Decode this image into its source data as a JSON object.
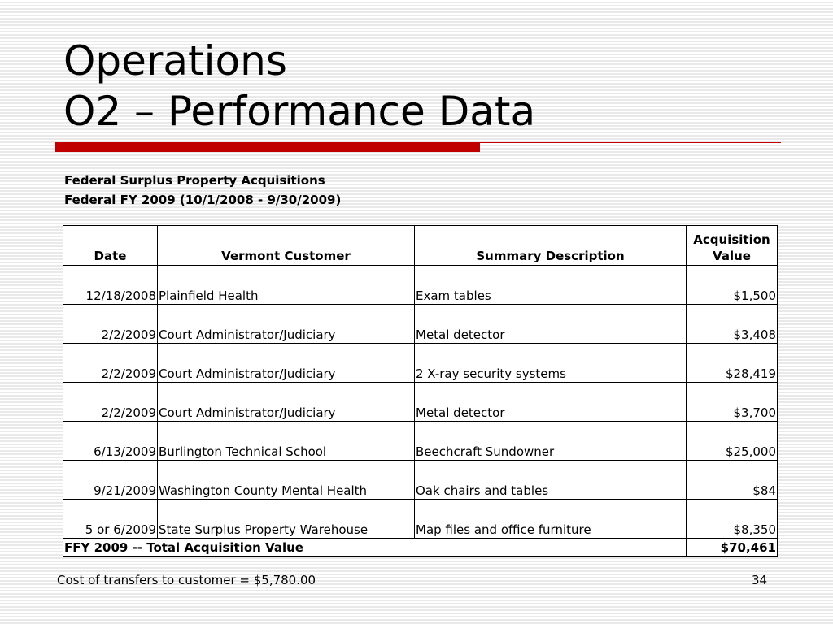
{
  "slide": {
    "title_line1": "Operations",
    "title_line2": "O2 – Performance Data",
    "subtitle_line1": "Federal Surplus Property Acquisitions",
    "subtitle_line2": "Federal FY 2009 (10/1/2008 - 9/30/2009)",
    "accent_color": "#c00000"
  },
  "table": {
    "headers": {
      "date": "Date",
      "customer": "Vermont Customer",
      "description": "Summary Description",
      "value_line1": "Acquisition",
      "value_line2": "Value"
    },
    "rows": [
      {
        "date": "12/18/2008",
        "customer": "Plainfield Health",
        "description": "Exam tables",
        "value": "$1,500"
      },
      {
        "date": "2/2/2009",
        "customer": "Court Administrator/Judiciary",
        "description": "Metal detector",
        "value": "$3,408"
      },
      {
        "date": "2/2/2009",
        "customer": "Court Administrator/Judiciary",
        "description": "2 X-ray security systems",
        "value": "$28,419"
      },
      {
        "date": "2/2/2009",
        "customer": "Court Administrator/Judiciary",
        "description": "Metal detector",
        "value": "$3,700"
      },
      {
        "date": "6/13/2009",
        "customer": "Burlington Technical School",
        "description": "Beechcraft Sundowner",
        "value": "$25,000"
      },
      {
        "date": "9/21/2009",
        "customer": "Washington County Mental Health",
        "description": "Oak chairs and tables",
        "value": "$84"
      },
      {
        "date": "5 or 6/2009",
        "customer": "State Surplus Property Warehouse",
        "description": "Map files and office furniture",
        "value": "$8,350"
      }
    ],
    "total": {
      "label": "FFY 2009 -- Total Acquisition Value",
      "value": "$70,461"
    }
  },
  "footer": {
    "note": "Cost of transfers to customer = $5,780.00",
    "page_number": "34"
  }
}
